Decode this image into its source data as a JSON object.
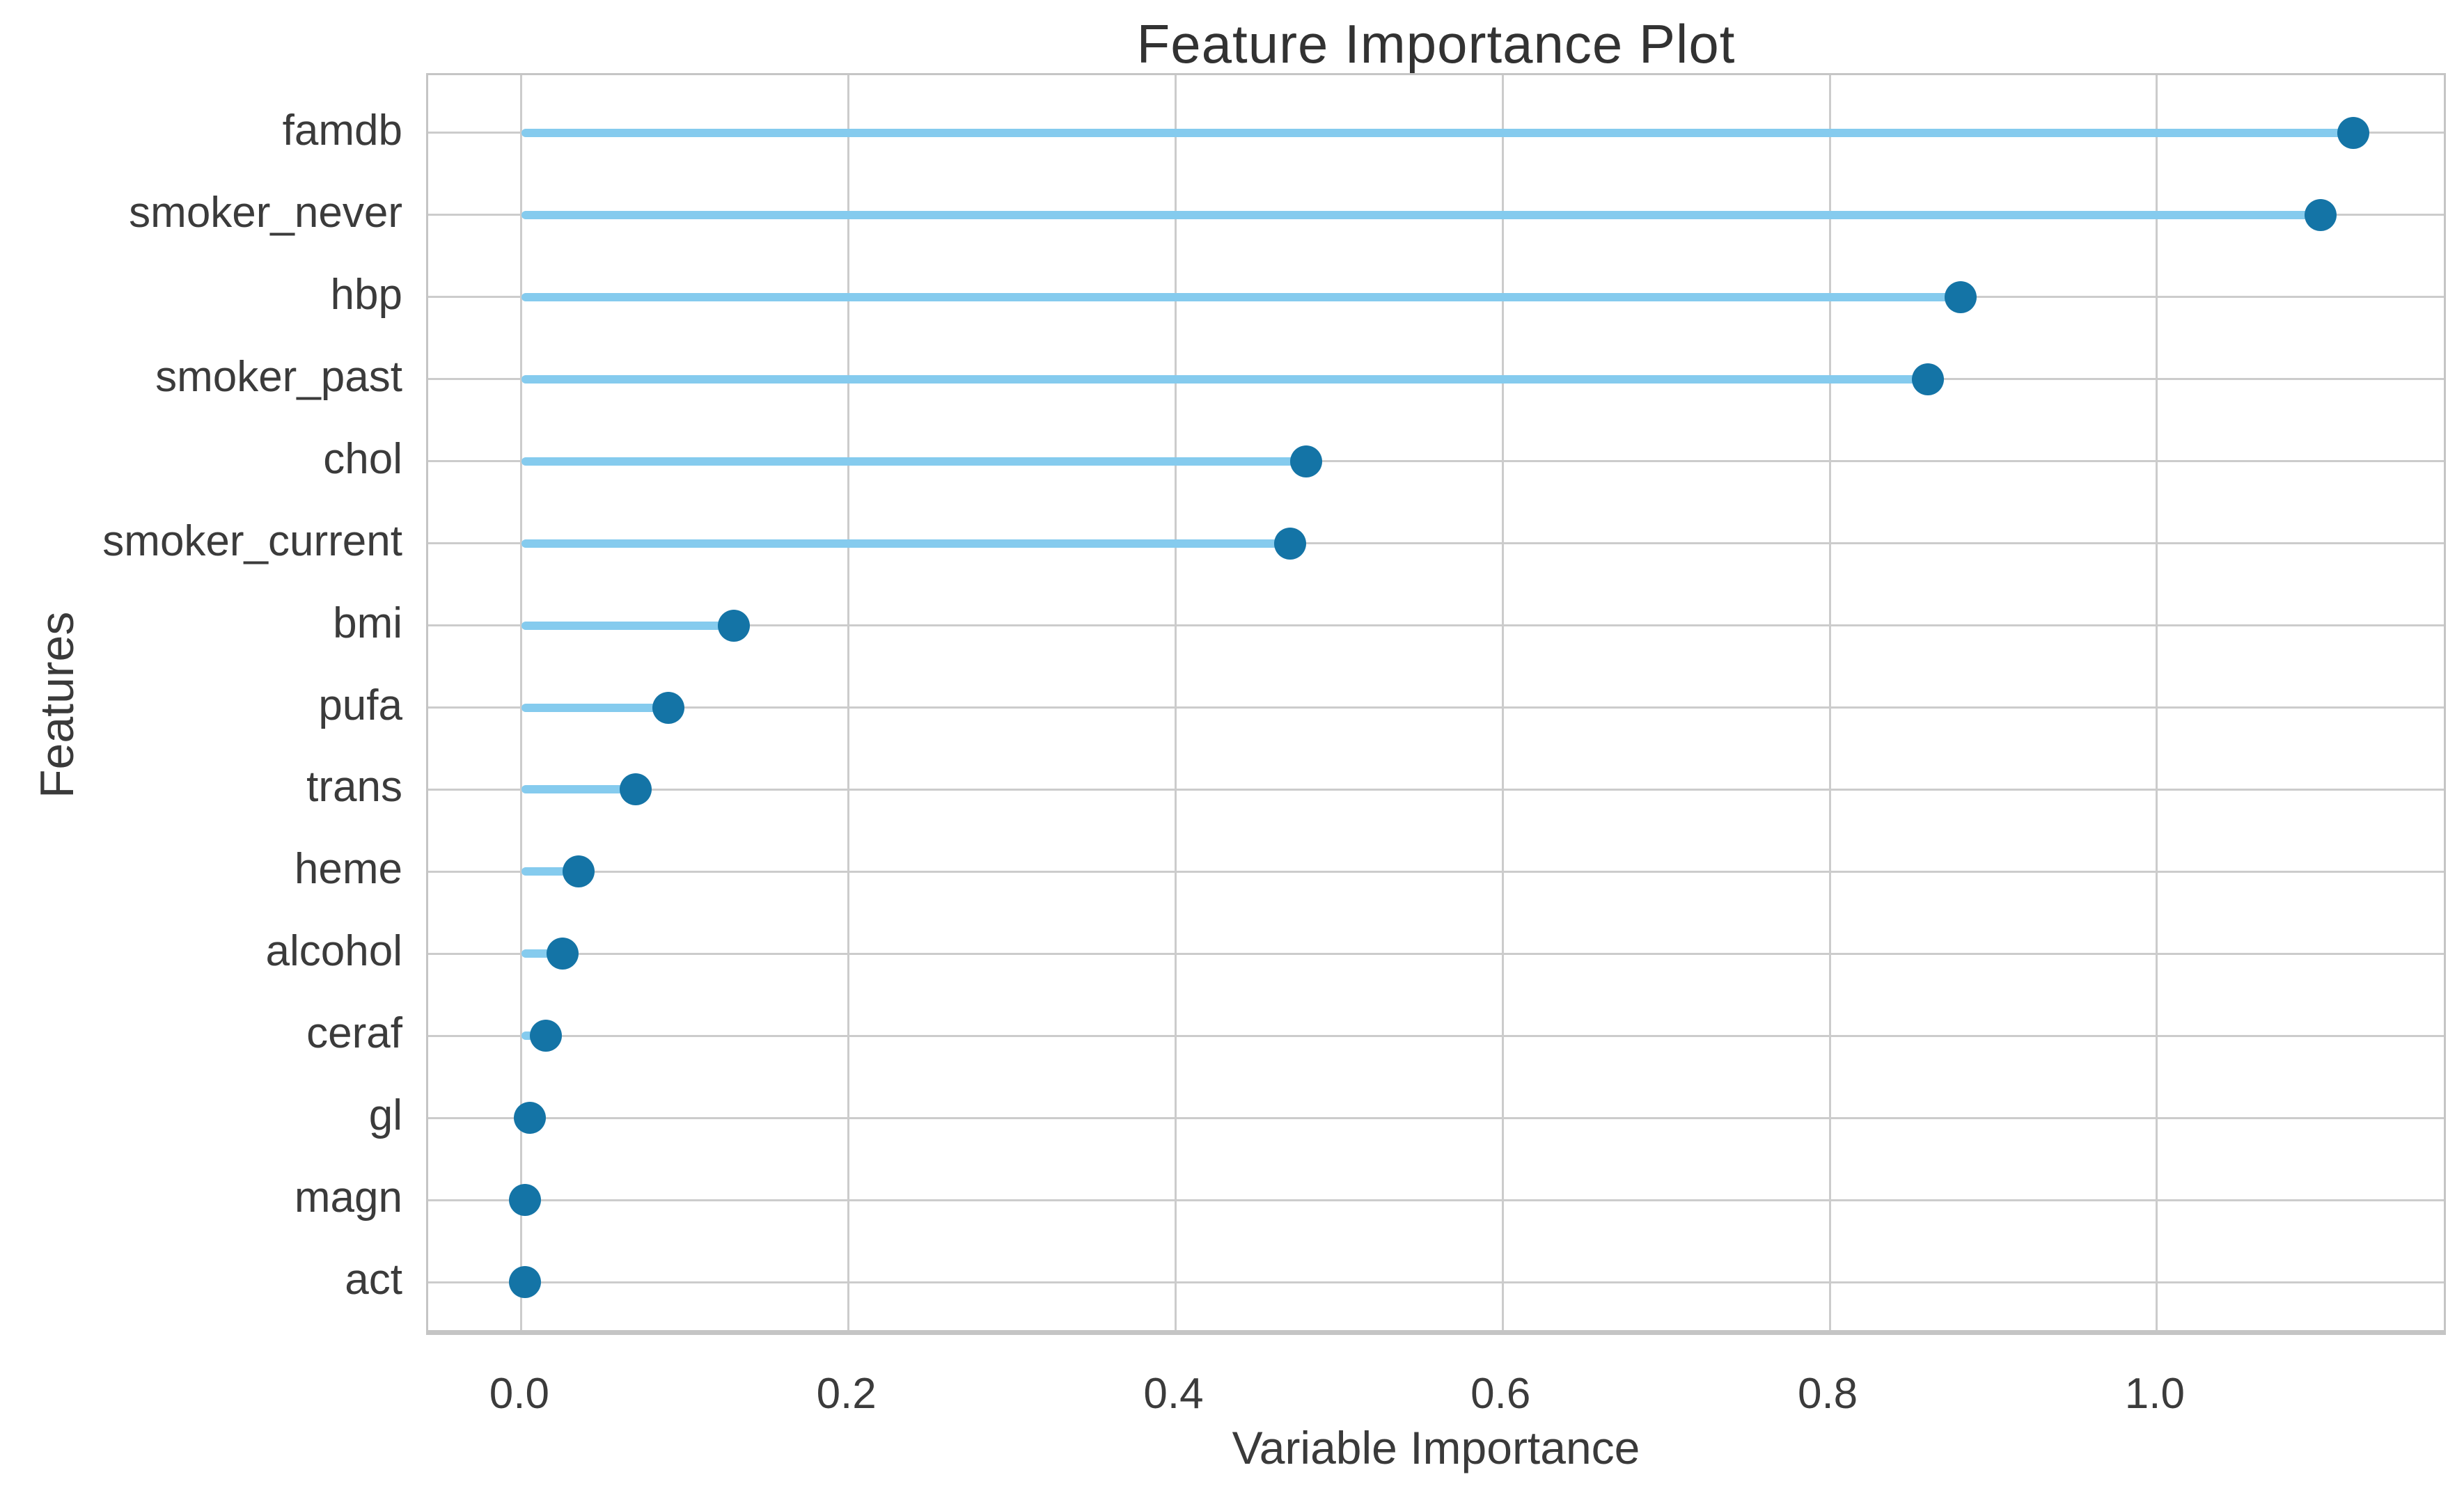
{
  "title": "Feature Importance Plot",
  "chart_data": {
    "type": "lollipop",
    "orientation": "horizontal",
    "title": "Feature Importance Plot",
    "xlabel": "Variable Importance",
    "ylabel": "Features",
    "categories": [
      "famdb",
      "smoker_never",
      "hbp",
      "smoker_past",
      "chol",
      "smoker_current",
      "bmi",
      "pufa",
      "trans",
      "heme",
      "alcohol",
      "ceraf",
      "gl",
      "magn",
      "act"
    ],
    "values": [
      1.12,
      1.1,
      0.88,
      0.86,
      0.48,
      0.47,
      0.13,
      0.09,
      0.07,
      0.035,
      0.025,
      0.015,
      0.005,
      0.002,
      0.002
    ],
    "stem_start": 0.0,
    "xticks": [
      0.0,
      0.2,
      0.4,
      0.6,
      0.8,
      1.0
    ],
    "xlim": [
      -0.057,
      1.178
    ],
    "grid": true,
    "legend": null,
    "colors": {
      "stem": "#85cbee",
      "marker": "#1474a6",
      "grid": "#cccccc",
      "spine": "#c5c5c5",
      "text": "#3b3b3b"
    }
  }
}
